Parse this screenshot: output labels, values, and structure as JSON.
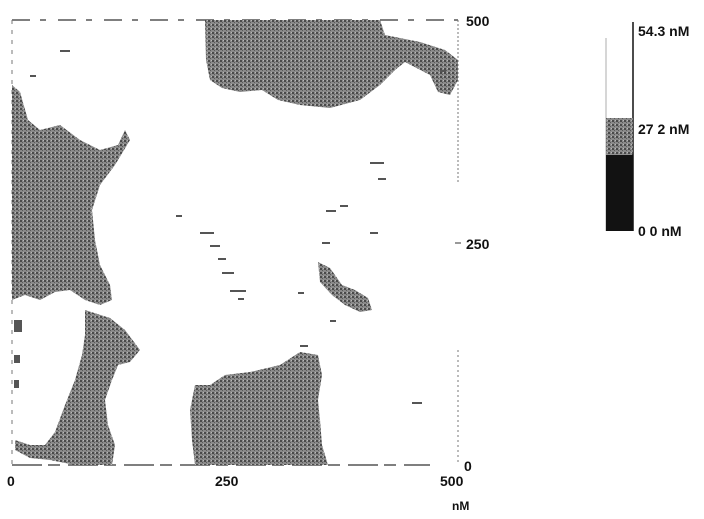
{
  "image": {
    "kind": "afm-height-map",
    "x_axis": {
      "ticks": [
        "0",
        "250",
        "500"
      ],
      "unit": "nM"
    },
    "y_axis": {
      "ticks": [
        "500",
        "250",
        "0"
      ]
    },
    "scale_bar": {
      "labels": [
        "54.3 nM",
        "27 2 nM",
        "0 0 nM"
      ],
      "colors": {
        "high": "#ffffff",
        "mid": "#9a9a9a",
        "low": "#111111"
      }
    },
    "colors": {
      "background": "#ffffff",
      "feature": "#6e6e6e",
      "feature_dark": "#3a3a3a"
    }
  }
}
